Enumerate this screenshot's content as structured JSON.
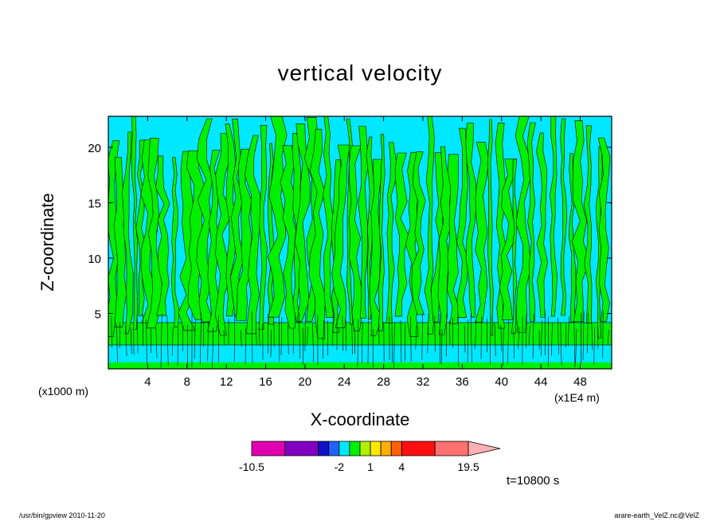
{
  "chart_data": {
    "type": "heatmap",
    "title": "vertical velocity",
    "xlabel": "X-coordinate",
    "ylabel": "Z-coordinate",
    "x_unit_label": "(x1000 m)",
    "x_scale_label": "(x1E4 m)",
    "xlim": [
      0,
      51.2
    ],
    "ylim": [
      0,
      22.8
    ],
    "x_ticks": [
      "4",
      "8",
      "12",
      "16",
      "20",
      "24",
      "28",
      "32",
      "36",
      "40",
      "44",
      "48"
    ],
    "x_tick_values": [
      4,
      8,
      12,
      16,
      20,
      24,
      28,
      32,
      36,
      40,
      44,
      48
    ],
    "y_ticks": [
      "5",
      "10",
      "15",
      "20"
    ],
    "y_tick_values": [
      5,
      10,
      15,
      20
    ],
    "colorbar": {
      "levels": [
        -10.5,
        -7.5,
        -4.5,
        -3,
        -2,
        -1,
        0,
        1,
        2,
        3,
        4,
        7.5,
        13.5,
        19.5
      ],
      "colors": [
        "#e000b0",
        "#8000c0",
        "#1010c8",
        "#1e64ff",
        "#00e8ff",
        "#00f000",
        "#b0f000",
        "#ffe800",
        "#ffb000",
        "#ff6000",
        "#ff1010",
        "#ff7070",
        "#ffb0b0"
      ],
      "labels": [
        "-10.5",
        "-2",
        "1",
        "4",
        "19.5"
      ],
      "label_values": [
        -10.5,
        -2,
        1,
        4,
        19.5
      ]
    },
    "field_colors": {
      "downdraft": "#00e8ff",
      "updraft": "#00f000",
      "contour": "#000000"
    },
    "time_label": "t=10800 s",
    "grid": false,
    "legend": "colorbar bottom-center"
  },
  "footer": {
    "left": "/usr/bin/gpview   2010-11-20",
    "right": "arare-earth_VelZ.nc@VelZ"
  }
}
